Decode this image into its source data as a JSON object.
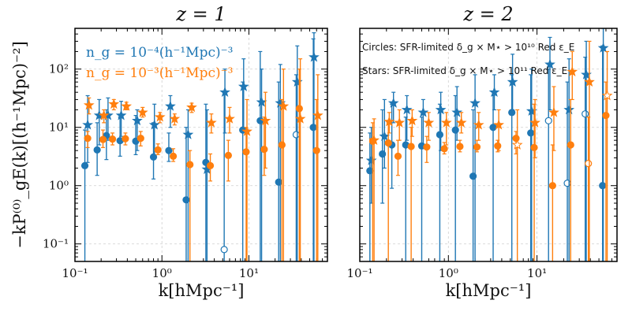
{
  "chart_data": {
    "type": "scatter",
    "axes": {
      "x_scale": "log",
      "y_scale": "log",
      "xlim": [
        0.1,
        80
      ],
      "ylim": [
        0.05,
        500
      ],
      "grid": true,
      "xlabel": "k[hMpc⁻¹]",
      "ylabel": "−kP⁽⁰⁾_gE(k)[(h⁻¹Mpc)⁻²]",
      "x_ticks": [
        {
          "value": 0.1,
          "label": "10⁻¹"
        },
        {
          "value": 1,
          "label": "10⁰"
        },
        {
          "value": 10,
          "label": "10¹"
        }
      ],
      "y_ticks": [
        {
          "value": 0.1,
          "label": "10⁻¹"
        },
        {
          "value": 1,
          "label": "10⁰"
        },
        {
          "value": 10,
          "label": "10¹"
        },
        {
          "value": 100,
          "label": "10²"
        }
      ]
    },
    "colors": {
      "blue": "#1f77b4",
      "orange": "#ff7f0e"
    },
    "panels": [
      {
        "title": "z = 1",
        "legend": [
          {
            "text": "n_g = 10⁻⁴(h⁻¹Mpc)⁻³",
            "color": "blue"
          },
          {
            "text": "n_g = 10⁻³(h⁻¹Mpc)⁻³",
            "color": "orange"
          }
        ],
        "series": [
          {
            "name": "circles n_g=1e-4",
            "color": "blue",
            "marker": "circle",
            "x": [
              0.13,
              0.18,
              0.23,
              0.33,
              0.5,
              0.8,
              1.2,
              1.9,
              3.2,
              5.2,
              8.5,
              13.5,
              22,
              35,
              55
            ],
            "y": [
              2.2,
              4.1,
              7.2,
              5.9,
              5.8,
              3.1,
              4.0,
              0.57,
              2.5,
              0.08,
              9.0,
              13.0,
              1.15,
              7.5,
              10.0
            ],
            "open": [
              false,
              false,
              false,
              false,
              false,
              false,
              false,
              false,
              false,
              true,
              false,
              false,
              false,
              true,
              false
            ],
            "lo": [
              0.05,
              1.5,
              2.8,
              3.2,
              3.4,
              1.3,
              2.6,
              0.05,
              0.05,
              0.05,
              0.05,
              0.05,
              0.05,
              0.05,
              0.05
            ],
            "hi": [
              9,
              12,
              20,
              15,
              16,
              12,
              8,
              10,
              25,
              40,
              60,
              200,
              60,
              80,
              330
            ]
          },
          {
            "name": "stars n_g=1e-4",
            "color": "blue",
            "marker": "star",
            "x": [
              0.14,
              0.19,
              0.24,
              0.34,
              0.52,
              0.82,
              1.25,
              2.0,
              3.3,
              5.3,
              8.7,
              14,
              23,
              36,
              56
            ],
            "y": [
              11,
              16,
              16,
              16,
              13,
              11,
              23,
              7.5,
              1.9,
              40,
              50,
              27,
              26,
              60,
              160
            ],
            "lo": [
              2.5,
              5,
              6,
              7,
              4,
              3,
              10,
              0.05,
              0.05,
              8,
              9,
              0.05,
              0.05,
              0.05,
              0.05
            ],
            "hi": [
              35,
              30,
              32,
              28,
              20,
              25,
              35,
              20,
              20,
              100,
              150,
              100,
              120,
              250,
              420
            ]
          },
          {
            "name": "circles n_g=1e-3",
            "color": "orange",
            "marker": "circle",
            "x": [
              0.14,
              0.21,
              0.27,
              0.38,
              0.57,
              0.9,
              1.35,
              2.1,
              3.6,
              5.8,
              9.3,
              15,
              24,
              38,
              60
            ],
            "y": [
              6.5,
              6.2,
              6.3,
              6.4,
              6.5,
              4.1,
              3.2,
              2.3,
              2.2,
              3.3,
              3.8,
              4.2,
              5.0,
              21,
              4.0
            ],
            "lo": [
              4.5,
              4.5,
              5,
              5,
              4.8,
              3.4,
              2.6,
              0.05,
              1.2,
              1.2,
              0.05,
              1.5,
              0.05,
              0.05,
              0.05
            ],
            "hi": [
              8.5,
              9,
              8,
              8,
              8.5,
              5.2,
              4.3,
              4,
              3.5,
              6,
              10,
              15,
              30,
              100,
              30
            ]
          },
          {
            "name": "stars n_g=1e-3",
            "color": "orange",
            "marker": "star",
            "x": [
              0.145,
              0.215,
              0.28,
              0.39,
              0.6,
              0.95,
              1.4,
              2.2,
              3.7,
              6.0,
              9.5,
              15.5,
              25,
              39,
              62
            ],
            "y": [
              24,
              16,
              25,
              23,
              18,
              15,
              14,
              22,
              12,
              14,
              8.5,
              13,
              23,
              14,
              16
            ],
            "lo": [
              17,
              12,
              20,
              20,
              15,
              12,
              11,
              18,
              8,
              8,
              0.05,
              2,
              0.05,
              0.05,
              0.05
            ],
            "hi": [
              32,
              20,
              30,
              27,
              22,
              18,
              17,
              26,
              17,
              22,
              30,
              40,
              100,
              150,
              80
            ]
          }
        ]
      },
      {
        "title": "z = 2",
        "notes": [
          "Circles: SFR-limited δ_g × M⋆ > 10¹⁰ Red ε_E",
          "Stars: SFR-limited δ_g × M⋆ > 10¹¹ Red ε_E"
        ],
        "series": [
          {
            "name": "circles n_g=1e-4",
            "color": "blue",
            "marker": "circle",
            "x": [
              0.13,
              0.18,
              0.23,
              0.33,
              0.5,
              0.8,
              1.2,
              1.9,
              3.2,
              5.2,
              8.5,
              13.5,
              22,
              35,
              55
            ],
            "y": [
              1.8,
              3.5,
              5.0,
              5.0,
              4.8,
              7.5,
              9.0,
              1.45,
              10.0,
              18,
              8.0,
              13,
              1.1,
              17,
              1.0
            ],
            "open": [
              false,
              false,
              false,
              false,
              false,
              false,
              false,
              false,
              false,
              false,
              false,
              true,
              true,
              true,
              false
            ],
            "lo": [
              0.05,
              0.5,
              0.9,
              0.05,
              0.05,
              0.05,
              0.05,
              0.05,
              0.05,
              0.05,
              0.05,
              0.05,
              0.05,
              0.05,
              0.05
            ],
            "hi": [
              8,
              20,
              25,
              15,
              15,
              25,
              35,
              20,
              35,
              80,
              80,
              100,
              60,
              160,
              250
            ]
          },
          {
            "name": "stars n_g=1e-4",
            "color": "blue",
            "marker": "star",
            "x": [
              0.135,
              0.19,
              0.24,
              0.34,
              0.52,
              0.82,
              1.25,
              2.0,
              3.3,
              5.3,
              8.7,
              14,
              23,
              36,
              56
            ],
            "y": [
              2.7,
              7,
              26,
              20,
              18,
              20,
              18,
              26,
              40,
              60,
              19,
              120,
              20,
              80,
              230
            ],
            "lo": [
              0.5,
              2,
              12,
              6,
              5,
              4,
              6,
              0.05,
              20,
              20,
              0.05,
              20,
              0.05,
              0.05,
              0.05
            ],
            "hi": [
              10,
              30,
              40,
              35,
              30,
              40,
              50,
              80,
              80,
              180,
              100,
              350,
              150,
              300,
              500
            ]
          },
          {
            "name": "circles n_g=1e-3",
            "color": "orange",
            "marker": "circle",
            "x": [
              0.14,
              0.21,
              0.27,
              0.38,
              0.57,
              0.9,
              1.35,
              2.1,
              3.6,
              5.8,
              9.3,
              15,
              24,
              38,
              60
            ],
            "y": [
              5.8,
              5.4,
              3.2,
              4.7,
              4.6,
              4.3,
              4.7,
              4.6,
              4.8,
              6.5,
              4.5,
              1.0,
              5.0,
              2.4,
              16
            ],
            "open": [
              false,
              false,
              false,
              false,
              false,
              false,
              false,
              false,
              false,
              false,
              false,
              false,
              false,
              true,
              false
            ],
            "lo": [
              0.05,
              0.05,
              1.5,
              0.05,
              2.5,
              3.5,
              3.8,
              3.8,
              3.8,
              3.5,
              0.05,
              0.05,
              0.05,
              0.05,
              0.05
            ],
            "hi": [
              12,
              12,
              6,
              10,
              7,
              5.5,
              6,
              6,
              6,
              8.5,
              25,
              5,
              30,
              15,
              60
            ]
          },
          {
            "name": "stars n_g=1e-3",
            "color": "orange",
            "marker": "star",
            "x": [
              0.145,
              0.215,
              0.28,
              0.39,
              0.6,
              0.95,
              1.4,
              2.2,
              3.7,
              6.0,
              9.5,
              15.5,
              25,
              39,
              62
            ],
            "y": [
              6,
              12.5,
              12,
              13,
              12,
              12,
              12,
              11,
              11,
              5,
              12,
              18,
              90,
              60,
              35
            ],
            "open": [
              false,
              false,
              false,
              false,
              false,
              false,
              false,
              false,
              false,
              true,
              false,
              false,
              false,
              false,
              true
            ],
            "lo": [
              0.05,
              8,
              6,
              7,
              6,
              5,
              8,
              6,
              4,
              0.05,
              3,
              4,
              30,
              0.05,
              0.05
            ],
            "hi": [
              14,
              18,
              20,
              20,
              18,
              18,
              18,
              18,
              20,
              20,
              30,
              50,
              200,
              300,
              200
            ]
          }
        ]
      }
    ]
  }
}
